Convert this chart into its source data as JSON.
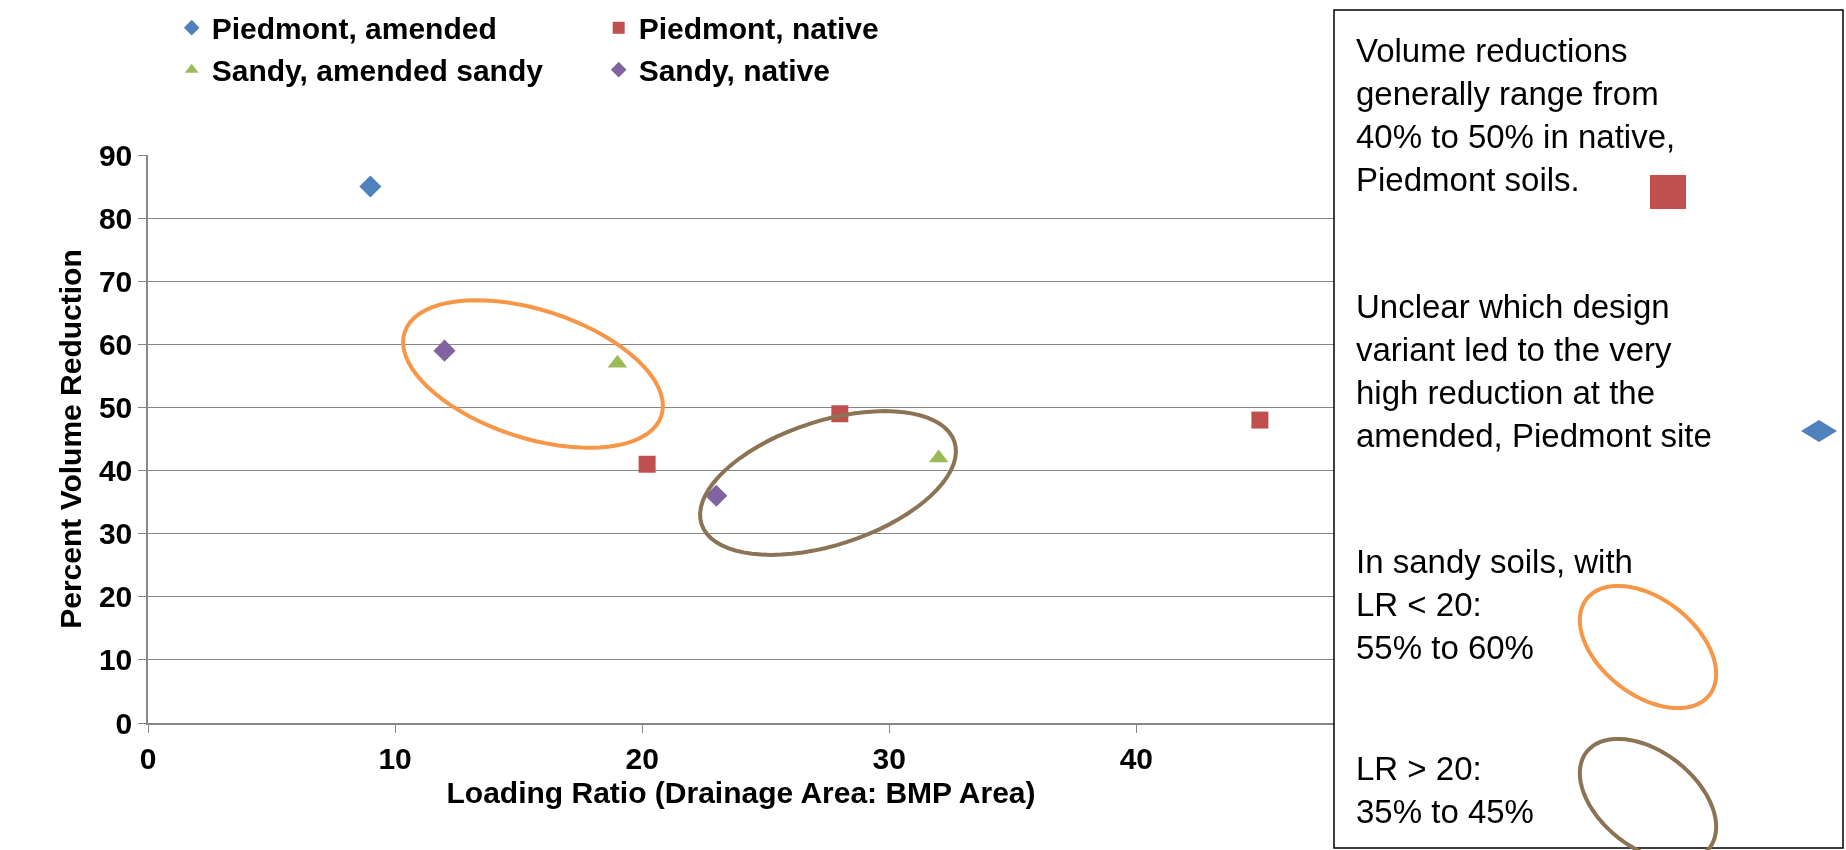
{
  "chart_data": {
    "type": "scatter",
    "xlabel": "Loading Ratio (Drainage Area: BMP Area)",
    "ylabel": "Percent Volume Reduction",
    "xlim": [
      0,
      48
    ],
    "xticks": [
      0,
      10,
      20,
      30,
      40
    ],
    "ylim": [
      0,
      90
    ],
    "yticks": [
      0,
      10,
      20,
      30,
      40,
      50,
      60,
      70,
      80,
      90
    ],
    "grid": "y",
    "legend": "top left",
    "series": [
      {
        "name": "Piedmont, amended",
        "color": "#4f81bd",
        "marker": "diamond",
        "x": [
          9
        ],
        "values": [
          85
        ]
      },
      {
        "name": "Piedmont, native",
        "color": "#c0504d",
        "marker": "square",
        "x": [
          20.2,
          28,
          45
        ],
        "values": [
          41,
          49,
          48
        ]
      },
      {
        "name": "Sandy, amended sandy",
        "color": "#9bbb59",
        "marker": "triangle",
        "x": [
          19,
          32
        ],
        "values": [
          57,
          42
        ]
      },
      {
        "name": "Sandy, native",
        "color": "#8064a2",
        "marker": "diamond",
        "x": [
          12,
          23
        ],
        "values": [
          59,
          36
        ]
      }
    ],
    "annotations": [
      "Volume reductions\ngenerally range from\n40% to 50% in native,\nPiedmont soils.",
      "Unclear which design\nvariant led to the very\nhigh reduction at the\namended, Piedmont site",
      "In sandy soils, with\nLR < 20:\n55% to 60%",
      "LR > 20:\n35% to 45%"
    ]
  }
}
